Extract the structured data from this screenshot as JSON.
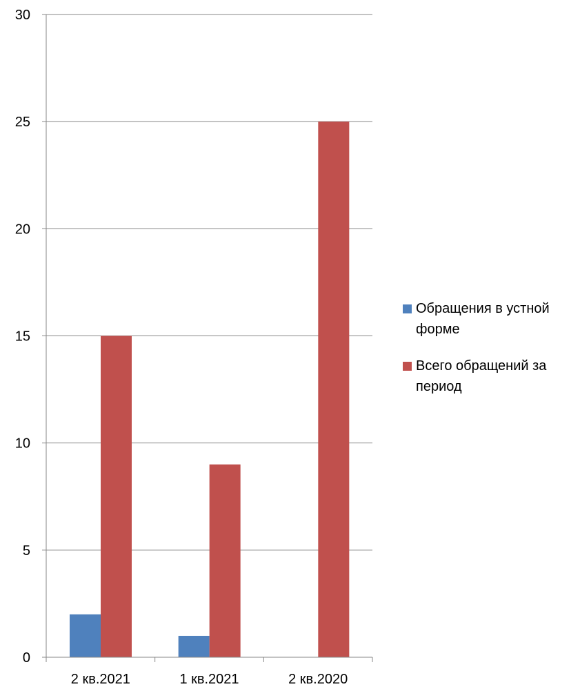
{
  "chart_data": {
    "type": "bar",
    "title": "",
    "xlabel": "",
    "ylabel": "",
    "categories": [
      "2 кв.2021",
      "1 кв.2021",
      "2 кв.2020"
    ],
    "ylim": [
      0,
      30
    ],
    "yticks": [
      0,
      5,
      10,
      15,
      20,
      25,
      30
    ],
    "grid": true,
    "legend_position": "right",
    "series": [
      {
        "name": "Обращения в устной форме",
        "color": "#4f81bd",
        "values": [
          2,
          1,
          0
        ]
      },
      {
        "name": "Всего обращений за период",
        "color": "#c0504d",
        "values": [
          15,
          9,
          25
        ]
      }
    ]
  }
}
